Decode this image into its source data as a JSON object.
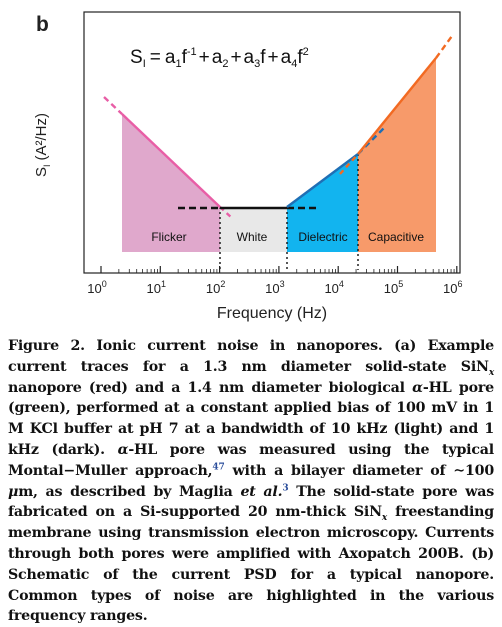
{
  "panel_label": "b",
  "equation": {
    "lhs": "S",
    "lhs_sub": "I",
    "a1": "a",
    "a1_sub": "1",
    "f1": "f",
    "f1_sup": "-1",
    "a2": "a",
    "a2_sub": "2",
    "a3": "a",
    "a3_sub": "3",
    "f3": "f",
    "a4": "a",
    "a4_sub": "4",
    "f4": "f",
    "f4_sup": "2",
    "plus": "+",
    "equals": "="
  },
  "y_axis_label": "S",
  "y_axis_label_sub": "I",
  "y_axis_units": "(A²/Hz)",
  "x_axis_label": "Frequency (Hz)",
  "colors": {
    "flicker": "#e0a8cc",
    "flicker_line": "#e85ea6",
    "white": "#e8e8e8",
    "dielectric": "#12b4ef",
    "dielectric_line": "#1f6fb5",
    "capacitive": "#f79a6a",
    "capacitive_line": "#f26a22",
    "white_line": "#111111"
  },
  "chart_data": {
    "type": "area",
    "x_scale": "log",
    "x_ticks": [
      1,
      10,
      100,
      1000,
      10000,
      100000,
      1000000
    ],
    "x_tick_labels": [
      {
        "base": "10",
        "exp": "0"
      },
      {
        "base": "10",
        "exp": "1"
      },
      {
        "base": "10",
        "exp": "2"
      },
      {
        "base": "10",
        "exp": "3"
      },
      {
        "base": "10",
        "exp": "4"
      },
      {
        "base": "10",
        "exp": "5"
      },
      {
        "base": "10",
        "exp": "6"
      }
    ],
    "xlabel": "Frequency (Hz)",
    "ylabel": "S_I (A²/Hz)",
    "regions": [
      {
        "name": "Flicker",
        "x_range": [
          3.5,
          100
        ]
      },
      {
        "name": "White",
        "x_range": [
          100,
          1300
        ]
      },
      {
        "name": "Dielectric",
        "x_range": [
          1300,
          25000
        ]
      },
      {
        "name": "Capacitive",
        "x_range": [
          25000,
          450000
        ]
      }
    ]
  },
  "caption": {
    "fig_num": "Figure 2.",
    "title": "Ionic current noise in nanopores.",
    "p1": "(a) Example current traces for a 1.3 nm diameter solid-state SiN",
    "p1_sub": "x",
    "p2": " nanopore (red) and a 1.4 nm diameter biological ",
    "p2_it": "α",
    "p3": "-HL pore (green), performed at a constant applied bias of 100 mV in 1 M KCl buffer at pH 7 at a bandwidth of 10 kHz (light) and 1 kHz (dark). ",
    "p3_it": "α",
    "p4": "-HL pore was measured using the typical Montal−Muller approach,",
    "ref1": "47",
    "p5": " with a bilayer diameter of ∼100 ",
    "p5_it": "μ",
    "p6": "m, as described by Maglia ",
    "p6_it": "et al.",
    "ref2": "3",
    "p7": " The solid-state pore was fabricated on a Si-supported 20 nm-thick SiN",
    "p7_sub": "x",
    "p8": " freestanding membrane using transmission electron microscopy. Currents through both pores were amplified with Axopatch 200B. (b) Schematic of the current PSD for a typical nanopore. Common types of noise are highlighted in the various frequency ranges."
  }
}
